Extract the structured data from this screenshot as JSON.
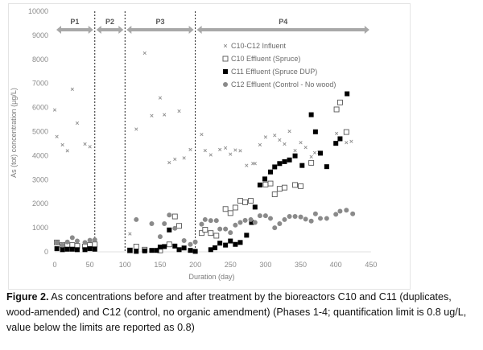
{
  "chart_data": {
    "type": "scatter",
    "title": "",
    "xlabel": "Duration (day)",
    "ylabel": "As (tot) concentration (µg/L)",
    "xlim": [
      0,
      450
    ],
    "ylim": [
      0,
      10000
    ],
    "xticks": [
      0,
      50,
      100,
      150,
      200,
      250,
      300,
      350,
      400,
      450
    ],
    "yticks": [
      0,
      1000,
      2000,
      3000,
      4000,
      5000,
      6000,
      7000,
      8000,
      9000,
      10000
    ],
    "grid": false,
    "legend_placement": "top-right",
    "phases": [
      {
        "label": "P1",
        "start": 0,
        "end": 57
      },
      {
        "label": "P2",
        "start": 57,
        "end": 100
      },
      {
        "label": "P3",
        "start": 100,
        "end": 200
      },
      {
        "label": "P4",
        "start": 200,
        "end": 450
      }
    ],
    "phase_boundaries": [
      57,
      100,
      200
    ],
    "series": [
      {
        "name": "C10-C12 Influent",
        "marker": "x",
        "color": "#8c8c8c",
        "x": [
          0,
          3,
          11,
          18,
          25,
          32,
          43,
          50,
          107,
          116,
          128,
          138,
          150,
          156,
          163,
          171,
          177,
          184,
          193,
          209,
          214,
          222,
          235,
          243,
          250,
          257,
          264,
          273,
          282,
          285,
          292,
          300,
          313,
          320,
          327,
          334,
          342,
          350,
          357,
          365,
          370,
          376,
          401,
          415,
          422
        ],
        "y": [
          5900,
          4790,
          4450,
          4200,
          6760,
          5350,
          4480,
          4370,
          750,
          5100,
          8260,
          5660,
          6400,
          5700,
          3710,
          3850,
          5850,
          3900,
          4250,
          4880,
          4210,
          4030,
          4250,
          4320,
          4060,
          4230,
          4200,
          3590,
          3670,
          3670,
          4450,
          4770,
          4840,
          4650,
          4480,
          5010,
          4210,
          4540,
          4340,
          3950,
          4120,
          4140,
          4920,
          4540,
          4590
        ]
      },
      {
        "name": "C10 Effluent (Spruce)",
        "marker": "open-square",
        "color": "#555555",
        "x": [
          3,
          11,
          18,
          25,
          32,
          43,
          50,
          57,
          107,
          116,
          128,
          150,
          163,
          171,
          177,
          209,
          214,
          222,
          230,
          243,
          250,
          257,
          264,
          271,
          279,
          300,
          307,
          313,
          320,
          327,
          342,
          350,
          365,
          401,
          406,
          415
        ],
        "y": [
          390,
          280,
          280,
          280,
          245,
          220,
          280,
          310,
          60,
          220,
          90,
          60,
          310,
          1470,
          1080,
          780,
          920,
          780,
          670,
          1780,
          1610,
          1840,
          2120,
          2060,
          2120,
          2800,
          2840,
          2390,
          2620,
          2670,
          2780,
          2730,
          3700,
          5920,
          6210,
          4980
        ]
      },
      {
        "name": "C11 Effluent (Spruce DUP)",
        "marker": "filled-square",
        "color": "#000000",
        "x": [
          3,
          11,
          18,
          25,
          32,
          43,
          50,
          57,
          107,
          116,
          128,
          138,
          145,
          150,
          156,
          163,
          171,
          177,
          184,
          193,
          200,
          222,
          228,
          235,
          243,
          250,
          257,
          264,
          273,
          280,
          285,
          292,
          299,
          307,
          313,
          320,
          327,
          334,
          342,
          352,
          365,
          371,
          378,
          387,
          400,
          406,
          416
        ],
        "y": [
          130,
          90,
          110,
          110,
          90,
          90,
          130,
          110,
          60,
          20,
          40,
          60,
          60,
          200,
          220,
          910,
          240,
          90,
          160,
          60,
          20,
          90,
          170,
          360,
          280,
          450,
          310,
          390,
          690,
          1220,
          1860,
          2780,
          3030,
          3320,
          3530,
          3670,
          3750,
          3820,
          3990,
          3590,
          5700,
          4990,
          4100,
          3540,
          4510,
          4700,
          6570
        ]
      },
      {
        "name": "C12 Effluent (Control - No wood)",
        "marker": "circle",
        "color": "#8a8a8a",
        "x": [
          3,
          11,
          18,
          25,
          32,
          43,
          50,
          57,
          116,
          138,
          150,
          156,
          163,
          171,
          184,
          193,
          200,
          209,
          214,
          222,
          230,
          235,
          243,
          250,
          257,
          264,
          271,
          279,
          285,
          292,
          300,
          307,
          313,
          320,
          327,
          334,
          342,
          350,
          357,
          365,
          371,
          378,
          387,
          400,
          406,
          415,
          424
        ],
        "y": [
          390,
          280,
          410,
          590,
          450,
          390,
          480,
          500,
          1340,
          1170,
          630,
          1170,
          1530,
          980,
          470,
          310,
          410,
          1150,
          1340,
          1300,
          1300,
          950,
          950,
          800,
          1110,
          1220,
          1310,
          1340,
          1220,
          1500,
          1500,
          1390,
          1000,
          1170,
          1340,
          1470,
          1470,
          1450,
          1360,
          1280,
          1580,
          1390,
          1390,
          1560,
          1690,
          1730,
          1580
        ]
      }
    ]
  },
  "caption": {
    "label": "Figure 2.",
    "text": " As concentrations before and after treatment by the bioreactors C10 and C11 (duplicates, wood-amended) and C12 (control, no organic amendment) (Phases 1-4; quantification limit is 0.8 ug/L, value below the limits are reported as 0.8)"
  }
}
